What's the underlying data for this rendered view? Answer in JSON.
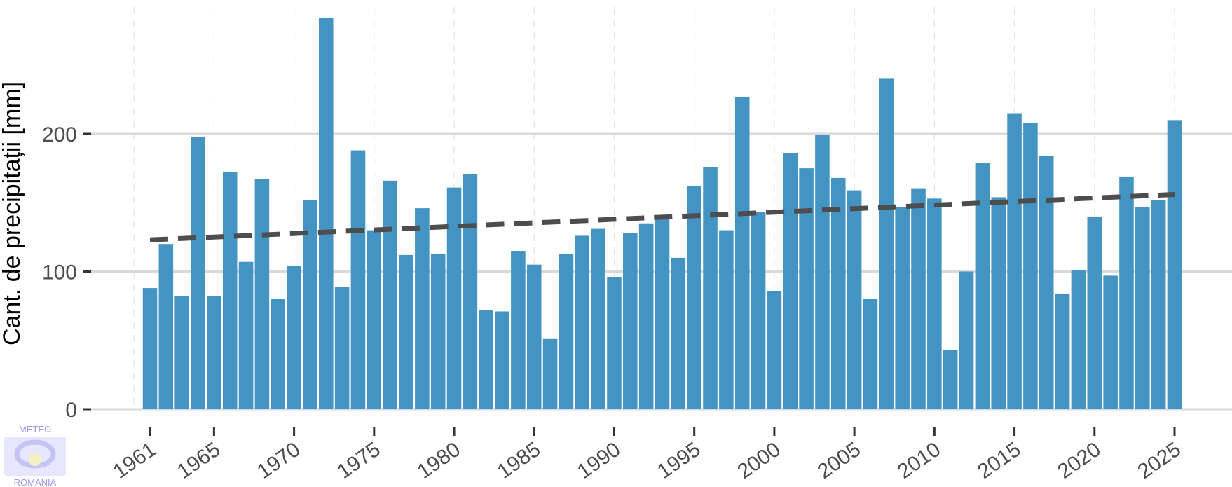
{
  "chart_data": {
    "type": "bar",
    "ylabel": "Cant. de precipitații [mm]",
    "xlabel": "",
    "title": "",
    "ylim": [
      0,
      285
    ],
    "xlim": [
      1960,
      2027
    ],
    "yticks": [
      0,
      100,
      200
    ],
    "xticks": [
      1961,
      1965,
      1970,
      1975,
      1980,
      1985,
      1990,
      1995,
      2000,
      2005,
      2010,
      2015,
      2020,
      2025
    ],
    "grid": true,
    "colors": {
      "bar": "#4393c3",
      "trend": "#4d4d4d",
      "grid": "#d9d9d9"
    },
    "x": [
      1961,
      1962,
      1963,
      1964,
      1965,
      1966,
      1967,
      1968,
      1969,
      1970,
      1971,
      1972,
      1973,
      1974,
      1975,
      1976,
      1977,
      1978,
      1979,
      1980,
      1981,
      1982,
      1983,
      1984,
      1985,
      1986,
      1987,
      1988,
      1989,
      1990,
      1991,
      1992,
      1993,
      1994,
      1995,
      1996,
      1997,
      1998,
      1999,
      2000,
      2001,
      2002,
      2003,
      2004,
      2005,
      2006,
      2007,
      2008,
      2009,
      2010,
      2011,
      2012,
      2013,
      2014,
      2015,
      2016,
      2017,
      2018,
      2019,
      2020,
      2021,
      2022,
      2023,
      2024,
      2025
    ],
    "values": [
      88,
      120,
      82,
      198,
      82,
      172,
      107,
      167,
      80,
      104,
      152,
      284,
      89,
      188,
      130,
      166,
      112,
      146,
      113,
      161,
      171,
      72,
      71,
      115,
      105,
      51,
      113,
      126,
      131,
      96,
      128,
      135,
      141,
      110,
      162,
      176,
      130,
      227,
      143,
      86,
      186,
      175,
      199,
      168,
      159,
      80,
      240,
      147,
      160,
      153,
      43,
      100,
      179,
      154,
      215,
      208,
      184,
      84,
      101,
      140,
      97,
      169,
      147,
      152,
      210
    ],
    "trend": {
      "style": "dashed",
      "x": [
        1961,
        2025
      ],
      "y": [
        123,
        156
      ]
    }
  },
  "logo": {
    "line1": "METEO",
    "line2": "ROMANIA"
  }
}
